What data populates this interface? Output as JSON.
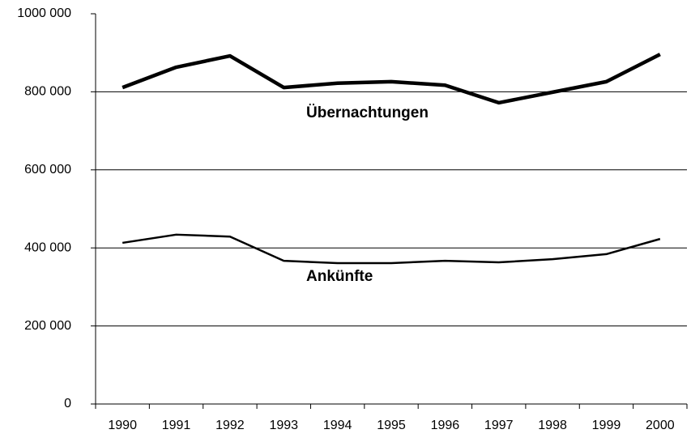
{
  "chart_data": {
    "type": "line",
    "categories": [
      "1990",
      "1991",
      "1992",
      "1993",
      "1994",
      "1995",
      "1996",
      "1997",
      "1998",
      "1999",
      "2000"
    ],
    "series": [
      {
        "name": "Übernachtungen",
        "color": "#000000",
        "width": 4.5,
        "values": [
          811000,
          863000,
          892000,
          811000,
          822000,
          826000,
          817000,
          772000,
          799000,
          826000,
          896000
        ]
      },
      {
        "name": "Ankünfte",
        "color": "#000000",
        "width": 2.5,
        "values": [
          413000,
          434000,
          429000,
          367000,
          361000,
          361000,
          367000,
          363000,
          371000,
          384000,
          423000
        ]
      }
    ],
    "ylim": [
      0,
      1000000
    ],
    "yticks": [
      0,
      {
        "value": 200000,
        "label": "200 000"
      },
      {
        "value": 400000,
        "label": "400 000"
      },
      {
        "value": 600000,
        "label": "600 000"
      },
      {
        "value": 800000,
        "label": "800 000"
      },
      {
        "value": 1000000,
        "label": "1000 000"
      }
    ],
    "grid": true
  }
}
